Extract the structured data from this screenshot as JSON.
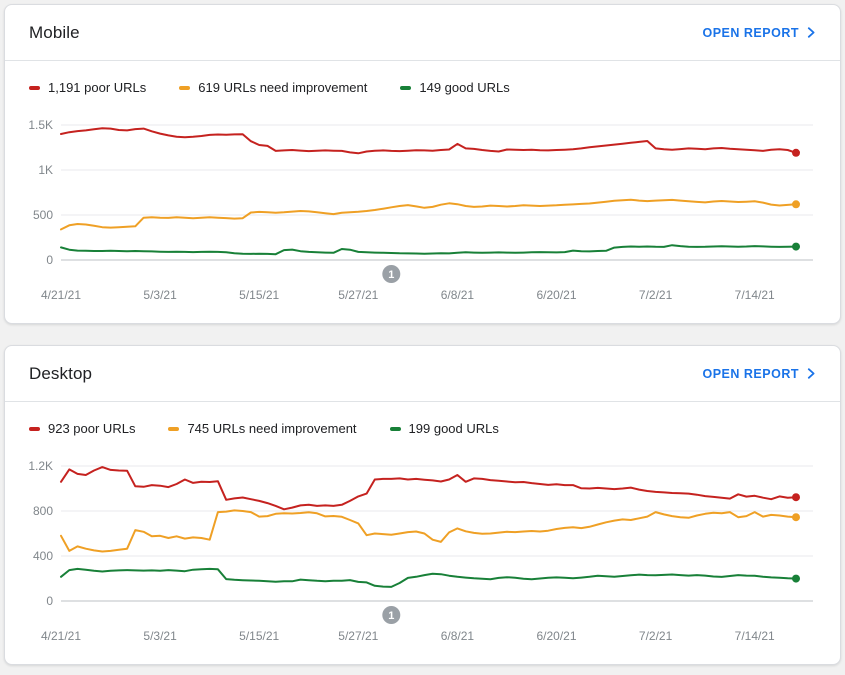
{
  "colors": {
    "poor": "#c5221f",
    "needs_improvement": "#efa025",
    "good": "#188038",
    "link": "#1a73e8",
    "title_text": "#202124",
    "axis_text": "#80868b",
    "gridline": "#e8eaed",
    "axis_line": "#bdc1c6",
    "annotation": "#9aa0a6",
    "card_background": "#ffffff",
    "page_background": "#f1f1f1",
    "card_border": "#dadce0"
  },
  "cards": [
    {
      "title": "Mobile",
      "open_report_label": "OPEN REPORT",
      "legend": [
        {
          "label": "1,191 poor URLs"
        },
        {
          "label": "619 URLs need improvement"
        },
        {
          "label": "149 good URLs"
        }
      ]
    },
    {
      "title": "Desktop",
      "open_report_label": "OPEN REPORT",
      "legend": [
        {
          "label": "923 poor URLs"
        },
        {
          "label": "745 URLs need improvement"
        },
        {
          "label": "199 good URLs"
        }
      ]
    }
  ],
  "chart_data": [
    {
      "type": "line",
      "title": "Mobile",
      "grid": true,
      "legend_position": "top",
      "x_tick_labels": [
        "4/21/21",
        "5/3/21",
        "5/15/21",
        "5/27/21",
        "6/8/21",
        "6/20/21",
        "7/2/21",
        "7/14/21"
      ],
      "x_tick_day_indices": [
        0,
        12,
        24,
        36,
        48,
        60,
        72,
        84
      ],
      "y_ticks": [
        {
          "value": 0,
          "label": "0"
        },
        {
          "value": 500,
          "label": "500"
        },
        {
          "value": 1000,
          "label": "1K"
        },
        {
          "value": 1500,
          "label": "1.5K"
        }
      ],
      "ylim": [
        0,
        1580
      ],
      "annotation": {
        "label": "1",
        "day_index": 40
      },
      "series": [
        {
          "name": "poor URLs",
          "color": "#c5221f",
          "values": [
            1400,
            1420,
            1432,
            1440,
            1452,
            1465,
            1460,
            1445,
            1440,
            1455,
            1460,
            1430,
            1405,
            1385,
            1370,
            1365,
            1370,
            1378,
            1390,
            1395,
            1392,
            1396,
            1398,
            1320,
            1278,
            1268,
            1212,
            1218,
            1222,
            1216,
            1210,
            1214,
            1218,
            1215,
            1212,
            1196,
            1186,
            1205,
            1215,
            1218,
            1212,
            1210,
            1215,
            1220,
            1218,
            1215,
            1222,
            1228,
            1290,
            1240,
            1235,
            1222,
            1212,
            1205,
            1228,
            1225,
            1222,
            1225,
            1220,
            1218,
            1222,
            1226,
            1230,
            1240,
            1252,
            1262,
            1272,
            1282,
            1292,
            1302,
            1312,
            1322,
            1240,
            1230,
            1226,
            1232,
            1240,
            1236,
            1230,
            1240,
            1244,
            1236,
            1230,
            1226,
            1220,
            1212,
            1226,
            1230,
            1222,
            1191
          ]
        },
        {
          "name": "URLs need improvement",
          "color": "#efa025",
          "values": [
            340,
            385,
            400,
            395,
            380,
            365,
            360,
            365,
            370,
            375,
            470,
            476,
            470,
            468,
            474,
            470,
            465,
            470,
            474,
            470,
            466,
            460,
            464,
            528,
            534,
            530,
            524,
            530,
            538,
            544,
            540,
            530,
            520,
            510,
            524,
            530,
            535,
            544,
            556,
            570,
            585,
            600,
            610,
            596,
            580,
            590,
            614,
            630,
            620,
            600,
            590,
            595,
            604,
            600,
            595,
            600,
            608,
            604,
            600,
            604,
            608,
            613,
            618,
            623,
            628,
            638,
            648,
            658,
            664,
            670,
            660,
            655,
            660,
            664,
            668,
            660,
            652,
            646,
            640,
            650,
            656,
            650,
            645,
            648,
            652,
            638,
            616,
            606,
            612,
            619
          ]
        },
        {
          "name": "good URLs",
          "color": "#188038",
          "values": [
            140,
            115,
            105,
            102,
            100,
            100,
            102,
            100,
            98,
            100,
            98,
            95,
            92,
            90,
            92,
            90,
            88,
            90,
            92,
            90,
            85,
            75,
            70,
            68,
            70,
            68,
            65,
            110,
            116,
            98,
            90,
            85,
            82,
            80,
            122,
            114,
            90,
            85,
            82,
            80,
            78,
            75,
            73,
            72,
            70,
            72,
            74,
            73,
            80,
            85,
            82,
            80,
            82,
            84,
            82,
            80,
            82,
            85,
            88,
            85,
            84,
            88,
            105,
            98,
            95,
            100,
            102,
            138,
            146,
            150,
            148,
            150,
            147,
            145,
            164,
            154,
            148,
            145,
            147,
            150,
            152,
            150,
            148,
            150,
            154,
            151,
            148,
            145,
            147,
            149
          ]
        }
      ]
    },
    {
      "type": "line",
      "title": "Desktop",
      "grid": true,
      "legend_position": "top",
      "x_tick_labels": [
        "4/21/21",
        "5/3/21",
        "5/15/21",
        "5/27/21",
        "6/8/21",
        "6/20/21",
        "7/2/21",
        "7/14/21"
      ],
      "x_tick_day_indices": [
        0,
        12,
        24,
        36,
        48,
        60,
        72,
        84
      ],
      "y_ticks": [
        {
          "value": 0,
          "label": "0"
        },
        {
          "value": 400,
          "label": "400"
        },
        {
          "value": 800,
          "label": "800"
        },
        {
          "value": 1200,
          "label": "1.2K"
        }
      ],
      "ylim": [
        0,
        1290
      ],
      "annotation": {
        "label": "1",
        "day_index": 40
      },
      "series": [
        {
          "name": "poor URLs",
          "color": "#c5221f",
          "values": [
            1060,
            1170,
            1130,
            1120,
            1160,
            1190,
            1165,
            1160,
            1158,
            1020,
            1015,
            1030,
            1025,
            1012,
            1040,
            1080,
            1050,
            1060,
            1058,
            1065,
            900,
            912,
            920,
            905,
            890,
            870,
            845,
            815,
            830,
            850,
            855,
            845,
            850,
            845,
            855,
            890,
            930,
            955,
            1080,
            1085,
            1085,
            1090,
            1080,
            1085,
            1078,
            1072,
            1062,
            1080,
            1120,
            1060,
            1090,
            1085,
            1075,
            1068,
            1062,
            1055,
            1058,
            1048,
            1040,
            1032,
            1038,
            1030,
            1030,
            1002,
            1000,
            1005,
            1000,
            995,
            1000,
            1008,
            990,
            978,
            970,
            965,
            960,
            958,
            955,
            945,
            932,
            925,
            918,
            910,
            948,
            928,
            935,
            918,
            905,
            930,
            918,
            923
          ]
        },
        {
          "name": "URLs need improvement",
          "color": "#efa025",
          "values": [
            580,
            445,
            485,
            465,
            450,
            440,
            445,
            455,
            465,
            630,
            615,
            575,
            580,
            560,
            575,
            555,
            565,
            560,
            545,
            790,
            795,
            805,
            800,
            790,
            750,
            755,
            775,
            780,
            778,
            782,
            788,
            780,
            752,
            756,
            748,
            720,
            690,
            585,
            600,
            595,
            588,
            600,
            612,
            618,
            600,
            545,
            525,
            610,
            645,
            620,
            605,
            598,
            600,
            608,
            615,
            612,
            618,
            622,
            618,
            625,
            640,
            650,
            655,
            648,
            660,
            680,
            700,
            715,
            725,
            720,
            735,
            750,
            790,
            770,
            755,
            745,
            740,
            760,
            775,
            785,
            780,
            790,
            745,
            755,
            790,
            750,
            765,
            760,
            750,
            745
          ]
        },
        {
          "name": "good URLs",
          "color": "#188038",
          "values": [
            215,
            275,
            285,
            278,
            268,
            262,
            268,
            272,
            275,
            272,
            270,
            272,
            268,
            275,
            270,
            265,
            278,
            282,
            285,
            282,
            195,
            188,
            185,
            182,
            180,
            176,
            172,
            176,
            175,
            190,
            185,
            180,
            176,
            180,
            180,
            186,
            170,
            165,
            135,
            128,
            125,
            160,
            205,
            215,
            230,
            242,
            238,
            225,
            215,
            208,
            202,
            198,
            194,
            205,
            212,
            206,
            198,
            194,
            200,
            206,
            210,
            206,
            202,
            208,
            215,
            225,
            220,
            215,
            222,
            228,
            235,
            230,
            228,
            232,
            236,
            230,
            226,
            230,
            226,
            218,
            214,
            222,
            230,
            226,
            224,
            216,
            210,
            206,
            202,
            199
          ]
        }
      ]
    }
  ]
}
